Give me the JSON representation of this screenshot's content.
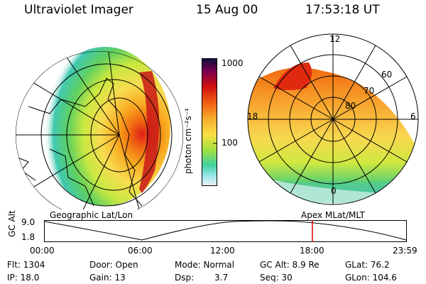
{
  "header": {
    "title": "Ultraviolet Imager",
    "date": "15 Aug 00",
    "time": "17:53:18 UT"
  },
  "left_panel": {
    "caption": "Geographic Lat/Lon"
  },
  "right_panel": {
    "caption": "Apex MLat/MLT",
    "mlt_labels": {
      "top": "12",
      "left": "18",
      "right": "6",
      "bottom": "0"
    },
    "lat_labels": [
      "60",
      "70",
      "80"
    ]
  },
  "colorbar": {
    "unit_label": "photon cm⁻²s⁻¹",
    "ticks": [
      "1000",
      "100"
    ]
  },
  "altitude_plot": {
    "ylabel": "GC Alt",
    "y_ticks": [
      "9.0",
      "1.8"
    ],
    "x_ticks": [
      "00:00",
      "06:00",
      "12:00",
      "18:00",
      "23:59"
    ],
    "marker_time": "17:53",
    "marker_color": "#e00000"
  },
  "footer": {
    "flt": "Flt: 1304",
    "ip": "IP: 18.0",
    "door": "Door: Open",
    "gain": "Gain: 13",
    "mode": "Mode: Normal",
    "dsp_label": "Dsp:",
    "dsp_value": "3.7",
    "gc_alt": "GC Alt: 8.9 Re",
    "seq": "Seq: 30",
    "glat": "GLat: 76.2",
    "glon": "GLon: 104.6"
  }
}
